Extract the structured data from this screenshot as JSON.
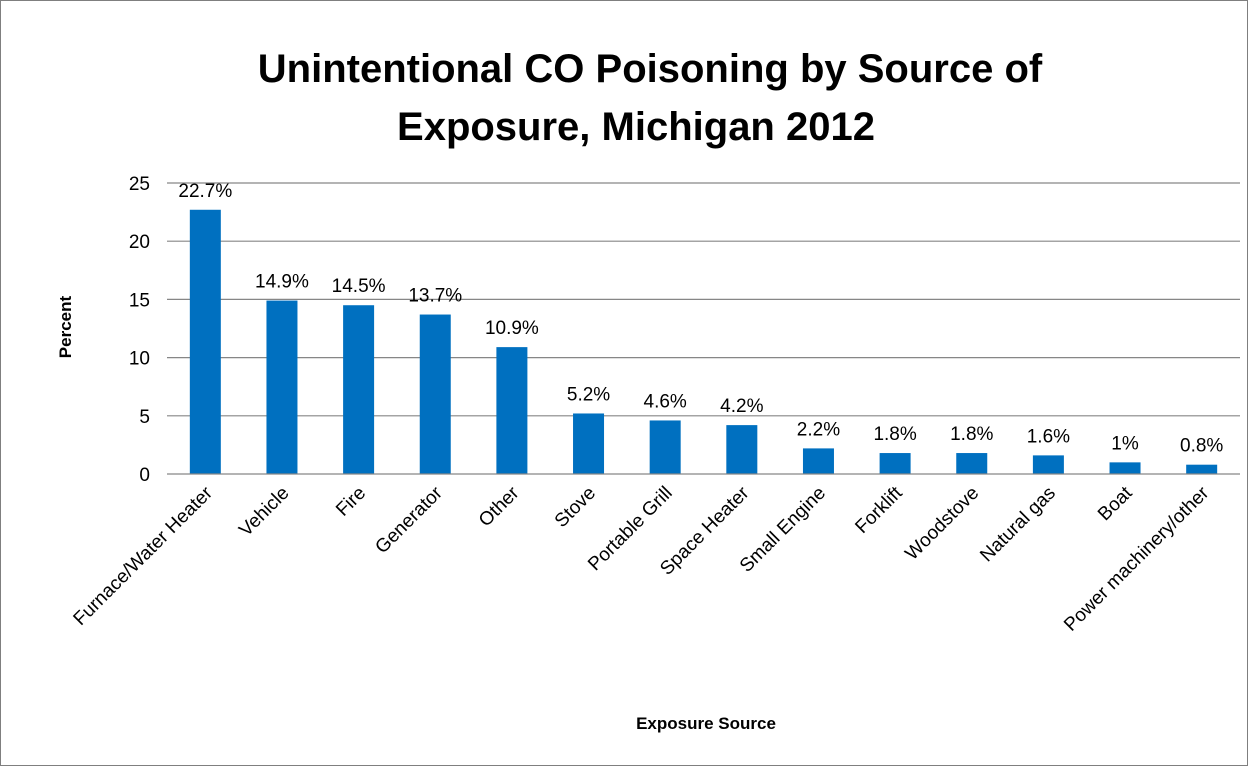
{
  "chart_data": {
    "type": "bar",
    "title_lines": [
      "Unintentional CO Poisoning by Source of",
      "Exposure, Michigan 2012"
    ],
    "xlabel": "Exposure Source",
    "ylabel": "Percent",
    "ylim": [
      0,
      25
    ],
    "yticks": [
      0,
      5,
      10,
      15,
      20,
      25
    ],
    "grid": true,
    "legend": "none",
    "bar_color": "#0070C0",
    "categories": [
      "Furnace/Water Heater",
      "Vehicle",
      "Fire",
      "Generator",
      "Other",
      "Stove",
      "Portable Grill",
      "Space Heater",
      "Small Engine",
      "Forklift",
      "Woodstove",
      "Natural gas",
      "Boat",
      "Power machinery/other"
    ],
    "values": [
      22.7,
      14.9,
      14.5,
      13.7,
      10.9,
      5.2,
      4.6,
      4.2,
      2.2,
      1.8,
      1.8,
      1.6,
      1,
      0.8
    ],
    "data_labels": [
      "22.7%",
      "14.9%",
      "14.5%",
      "13.7%",
      "10.9%",
      "5.2%",
      "4.6%",
      "4.2%",
      "2.2%",
      "1.8%",
      "1.8%",
      "1.6%",
      "1%",
      "0.8%"
    ]
  }
}
